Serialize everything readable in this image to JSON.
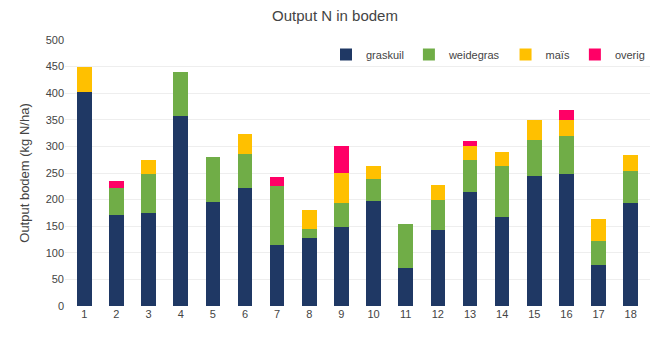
{
  "chart_data": {
    "type": "bar",
    "stacked": true,
    "title": "Output N in bodem",
    "ylabel": "Output bodem (kg N/ha)",
    "categories": [
      1,
      2,
      3,
      4,
      5,
      6,
      7,
      8,
      9,
      10,
      11,
      12,
      13,
      14,
      15,
      16,
      17,
      18
    ],
    "series": [
      {
        "name": "graskuil",
        "color": "#1f3864",
        "values": [
          403,
          172,
          175,
          358,
          195,
          222,
          115,
          127,
          148,
          198,
          72,
          142,
          215,
          168,
          245,
          248,
          77,
          193
        ]
      },
      {
        "name": "weidegras",
        "color": "#70ad47",
        "values": [
          0,
          50,
          73,
          82,
          85,
          63,
          110,
          18,
          45,
          40,
          83,
          58,
          60,
          95,
          67,
          72,
          45,
          60
        ]
      },
      {
        "name": "maïs",
        "color": "#ffc000",
        "values": [
          47,
          0,
          27,
          0,
          0,
          38,
          0,
          35,
          57,
          25,
          0,
          27,
          25,
          27,
          38,
          30,
          42,
          30
        ]
      },
      {
        "name": "overig",
        "color": "#ff0066",
        "values": [
          0,
          13,
          0,
          0,
          0,
          0,
          17,
          0,
          50,
          0,
          0,
          0,
          10,
          0,
          0,
          18,
          0,
          0
        ]
      }
    ],
    "ylim": [
      0,
      500
    ],
    "yticks": [
      0,
      50,
      100,
      150,
      200,
      250,
      300,
      350,
      400,
      450,
      500
    ],
    "grid": true,
    "legend": "upper right"
  }
}
